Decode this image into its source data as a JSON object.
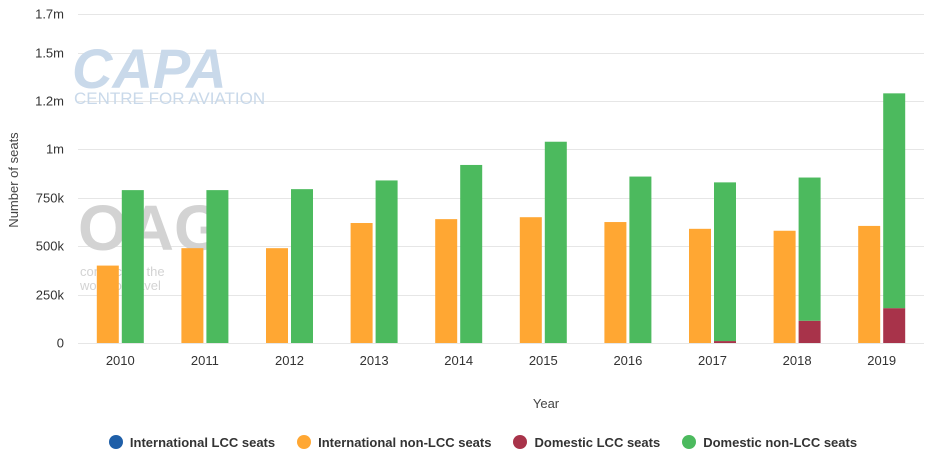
{
  "watermarks": {
    "capa_logo": "CAPA",
    "capa_subtitle": "CENTRE FOR AVIATION",
    "oag_logo": "OAG",
    "oag_subtitle_1": "connecting the",
    "oag_subtitle_2": "world of travel"
  },
  "chart_data": {
    "type": "bar",
    "xlabel": "Year",
    "ylabel": "Number of seats",
    "ylim": [
      0,
      1700000
    ],
    "ytick_values": [
      0,
      250000,
      500000,
      750000,
      1000000,
      1250000,
      1500000,
      1700000
    ],
    "ytick_labels": [
      "0",
      "250k",
      "500k",
      "750k",
      "1m",
      "1.2m",
      "1.5m",
      "1.7m"
    ],
    "grid": true,
    "legend_position": "bottom",
    "categories": [
      "2010",
      "2011",
      "2012",
      "2013",
      "2014",
      "2015",
      "2016",
      "2017",
      "2018",
      "2019"
    ],
    "series": [
      {
        "name": "International LCC seats",
        "stack": "international",
        "color": "#1f5fa8",
        "values": [
          0,
          0,
          0,
          0,
          0,
          0,
          0,
          0,
          0,
          0
        ]
      },
      {
        "name": "International non-LCC seats",
        "stack": "international",
        "color": "#ffa733",
        "values": [
          400000,
          490000,
          490000,
          620000,
          640000,
          650000,
          625000,
          590000,
          580000,
          605000
        ]
      },
      {
        "name": "Domestic LCC seats",
        "stack": "domestic",
        "color": "#a8334a",
        "values": [
          0,
          0,
          0,
          0,
          0,
          0,
          0,
          10000,
          115000,
          180000
        ]
      },
      {
        "name": "Domestic non-LCC seats",
        "stack": "domestic",
        "color": "#4cba5e",
        "values": [
          790000,
          790000,
          795000,
          840000,
          920000,
          1040000,
          860000,
          820000,
          740000,
          1110000
        ]
      }
    ]
  }
}
